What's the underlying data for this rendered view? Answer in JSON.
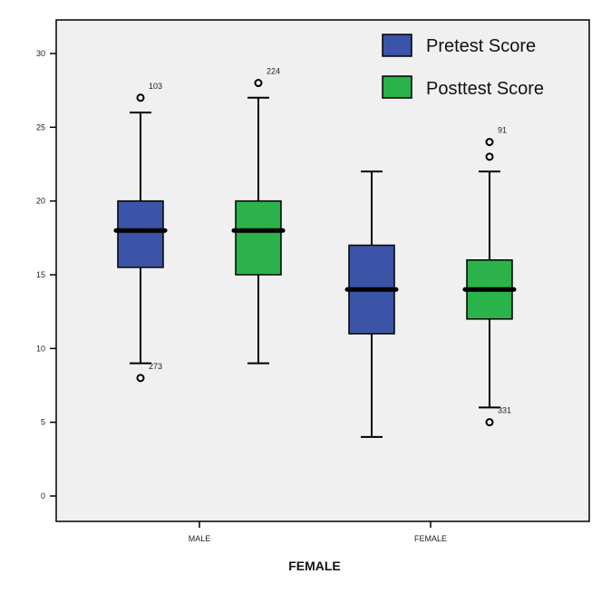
{
  "chart_data": {
    "type": "boxplot",
    "title": "",
    "xlabel": "FEMALE",
    "ylabel": "",
    "categories": [
      "MALE",
      "FEMALE"
    ],
    "ylim": [
      0,
      30
    ],
    "yticks": [
      0,
      5,
      10,
      15,
      20,
      25,
      30
    ],
    "grid": false,
    "legend_position": "top-right",
    "series": [
      {
        "name": "Pretest Score",
        "color": "#3b54a8",
        "boxes": [
          {
            "category": "MALE",
            "whisker_low": 9,
            "q1": 15.5,
            "median": 18,
            "q3": 20,
            "whisker_high": 26,
            "outliers": [
              {
                "value": 27,
                "label": "103"
              },
              {
                "value": 8,
                "label": "273"
              }
            ]
          },
          {
            "category": "FEMALE",
            "whisker_low": 4,
            "q1": 11,
            "median": 14,
            "q3": 17,
            "whisker_high": 22,
            "outliers": []
          }
        ]
      },
      {
        "name": "Posttest Score",
        "color": "#2bb24a",
        "boxes": [
          {
            "category": "MALE",
            "whisker_low": 9,
            "q1": 15,
            "median": 18,
            "q3": 20,
            "whisker_high": 27,
            "outliers": [
              {
                "value": 28,
                "label": "224"
              }
            ]
          },
          {
            "category": "FEMALE",
            "whisker_low": 6,
            "q1": 12,
            "median": 14,
            "q3": 16,
            "whisker_high": 22,
            "outliers": [
              {
                "value": 24,
                "label": "91"
              },
              {
                "value": 23,
                "label": ""
              },
              {
                "value": 5,
                "label": "331"
              }
            ]
          }
        ]
      }
    ]
  }
}
